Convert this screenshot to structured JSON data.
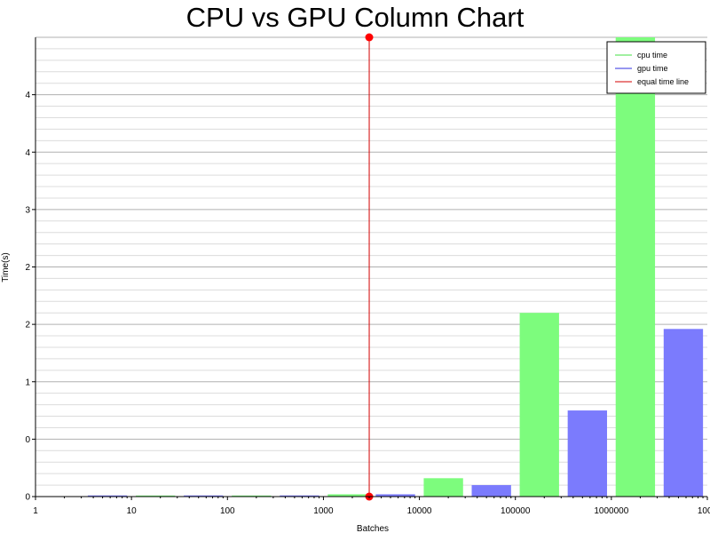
{
  "chart_data": {
    "type": "bar",
    "title": "CPU vs GPU Column Chart",
    "xlabel": "Batches",
    "ylabel": "Time(s)",
    "x_scale": "log",
    "x_ticks": [
      "1",
      "10",
      "100",
      "1000",
      "10000",
      "100000",
      "1000000",
      "1000"
    ],
    "y_ticks": [
      "0",
      "0",
      "1",
      "2",
      "2",
      "3",
      "4",
      "4"
    ],
    "grid": true,
    "legend_position": "top-right",
    "series": [
      {
        "name": "cpu time",
        "color": "#7dfc7d",
        "values": [
          {
            "batches": 10,
            "time": 0.0
          },
          {
            "batches": 100,
            "time": 0.0
          },
          {
            "batches": 1000,
            "time": 0.02
          },
          {
            "batches": 10000,
            "time": 0.16
          },
          {
            "batches": 100000,
            "time": 1.6
          },
          {
            "batches": 1000000,
            "time": 4.0
          }
        ]
      },
      {
        "name": "gpu time",
        "color": "#7b7bfd",
        "values": [
          {
            "batches": 10,
            "time": 0.01
          },
          {
            "batches": 100,
            "time": 0.01
          },
          {
            "batches": 1000,
            "time": 0.01
          },
          {
            "batches": 10000,
            "time": 0.02
          },
          {
            "batches": 100000,
            "time": 0.1
          },
          {
            "batches": 1000000,
            "time": 0.75
          },
          {
            "batches": 10000000,
            "time": 1.46
          }
        ]
      }
    ],
    "reference_line": {
      "name": "equal time line",
      "color": "#d40000",
      "batches": 3000,
      "y_range": [
        0,
        4
      ]
    }
  }
}
